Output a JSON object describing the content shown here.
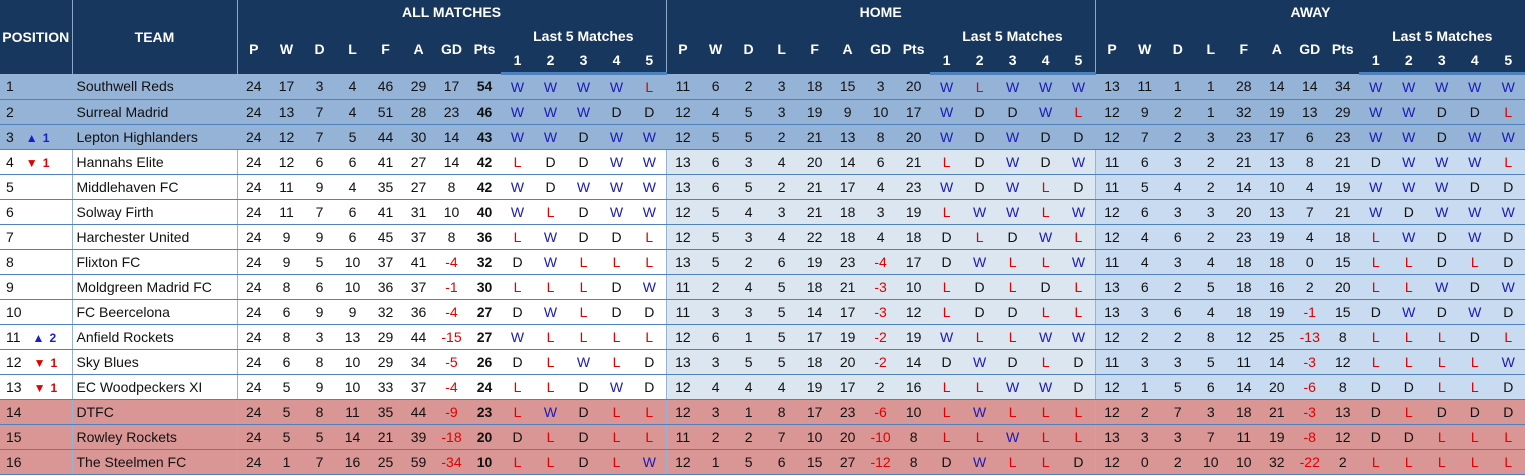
{
  "header": {
    "position": "POSITION",
    "team": "TEAM",
    "sections": [
      "ALL MATCHES",
      "HOME",
      "AWAY"
    ],
    "last5_label": "Last 5 Matches",
    "stat_columns": [
      "P",
      "W",
      "D",
      "L",
      "F",
      "A",
      "GD",
      "Pts"
    ],
    "last5_columns": [
      "1",
      "2",
      "3",
      "4",
      "5"
    ]
  },
  "colors": {
    "header_bg": "#17375e",
    "top_zone": "#95b3d7",
    "bottom_zone": "#da9694",
    "win": "#1a1ab8",
    "loss": "#e00000",
    "up_arrow": "#1a1ad0",
    "down_arrow": "#e00000"
  },
  "rows": [
    {
      "pos": "1",
      "move": null,
      "team": "Southwell Reds",
      "zone": "top",
      "all": [
        "24",
        "17",
        "3",
        "4",
        "46",
        "29",
        "17",
        "54"
      ],
      "all_form": [
        "W",
        "W",
        "W",
        "W",
        "L"
      ],
      "home": [
        "11",
        "6",
        "2",
        "3",
        "18",
        "15",
        "3",
        "20"
      ],
      "home_form": [
        "W",
        "L",
        "W",
        "W",
        "W"
      ],
      "away": [
        "13",
        "11",
        "1",
        "1",
        "28",
        "14",
        "14",
        "34"
      ],
      "away_form": [
        "W",
        "W",
        "W",
        "W",
        "W"
      ]
    },
    {
      "pos": "2",
      "move": null,
      "team": "Surreal Madrid",
      "zone": "top",
      "all": [
        "24",
        "13",
        "7",
        "4",
        "51",
        "28",
        "23",
        "46"
      ],
      "all_form": [
        "W",
        "W",
        "W",
        "D",
        "D"
      ],
      "home": [
        "12",
        "4",
        "5",
        "3",
        "19",
        "9",
        "10",
        "17"
      ],
      "home_form": [
        "W",
        "D",
        "D",
        "W",
        "L"
      ],
      "away": [
        "12",
        "9",
        "2",
        "1",
        "32",
        "19",
        "13",
        "29"
      ],
      "away_form": [
        "W",
        "W",
        "D",
        "D",
        "L"
      ]
    },
    {
      "pos": "3",
      "move": {
        "dir": "up",
        "n": "1"
      },
      "team": "Lepton Highlanders",
      "zone": "top",
      "all": [
        "24",
        "12",
        "7",
        "5",
        "44",
        "30",
        "14",
        "43"
      ],
      "all_form": [
        "W",
        "W",
        "D",
        "W",
        "W"
      ],
      "home": [
        "12",
        "5",
        "5",
        "2",
        "21",
        "13",
        "8",
        "20"
      ],
      "home_form": [
        "W",
        "D",
        "W",
        "D",
        "D"
      ],
      "away": [
        "12",
        "7",
        "2",
        "3",
        "23",
        "17",
        "6",
        "23"
      ],
      "away_form": [
        "W",
        "W",
        "D",
        "W",
        "W"
      ]
    },
    {
      "pos": "4",
      "move": {
        "dir": "down",
        "n": "1"
      },
      "team": "Hannahs Elite",
      "zone": "mid",
      "all": [
        "24",
        "12",
        "6",
        "6",
        "41",
        "27",
        "14",
        "42"
      ],
      "all_form": [
        "L",
        "D",
        "D",
        "W",
        "W"
      ],
      "home": [
        "13",
        "6",
        "3",
        "4",
        "20",
        "14",
        "6",
        "21"
      ],
      "home_form": [
        "L",
        "D",
        "W",
        "D",
        "W"
      ],
      "away": [
        "11",
        "6",
        "3",
        "2",
        "21",
        "13",
        "8",
        "21"
      ],
      "away_form": [
        "D",
        "W",
        "W",
        "W",
        "L"
      ]
    },
    {
      "pos": "5",
      "move": null,
      "team": "Middlehaven FC",
      "zone": "mid",
      "all": [
        "24",
        "11",
        "9",
        "4",
        "35",
        "27",
        "8",
        "42"
      ],
      "all_form": [
        "W",
        "D",
        "W",
        "W",
        "W"
      ],
      "home": [
        "13",
        "6",
        "5",
        "2",
        "21",
        "17",
        "4",
        "23"
      ],
      "home_form": [
        "W",
        "D",
        "W",
        "L",
        "D"
      ],
      "away": [
        "11",
        "5",
        "4",
        "2",
        "14",
        "10",
        "4",
        "19"
      ],
      "away_form": [
        "W",
        "W",
        "W",
        "D",
        "D"
      ]
    },
    {
      "pos": "6",
      "move": null,
      "team": "Solway Firth",
      "zone": "mid",
      "all": [
        "24",
        "11",
        "7",
        "6",
        "41",
        "31",
        "10",
        "40"
      ],
      "all_form": [
        "W",
        "L",
        "D",
        "W",
        "W"
      ],
      "home": [
        "12",
        "5",
        "4",
        "3",
        "21",
        "18",
        "3",
        "19"
      ],
      "home_form": [
        "L",
        "W",
        "W",
        "L",
        "W"
      ],
      "away": [
        "12",
        "6",
        "3",
        "3",
        "20",
        "13",
        "7",
        "21"
      ],
      "away_form": [
        "W",
        "D",
        "W",
        "W",
        "W"
      ]
    },
    {
      "pos": "7",
      "move": null,
      "team": "Harchester United",
      "zone": "mid",
      "all": [
        "24",
        "9",
        "9",
        "6",
        "45",
        "37",
        "8",
        "36"
      ],
      "all_form": [
        "L",
        "W",
        "D",
        "D",
        "L"
      ],
      "home": [
        "12",
        "5",
        "3",
        "4",
        "22",
        "18",
        "4",
        "18"
      ],
      "home_form": [
        "D",
        "L",
        "D",
        "W",
        "L"
      ],
      "away": [
        "12",
        "4",
        "6",
        "2",
        "23",
        "19",
        "4",
        "18"
      ],
      "away_form": [
        "L",
        "W",
        "D",
        "W",
        "D"
      ]
    },
    {
      "pos": "8",
      "move": null,
      "team": "Flixton FC",
      "zone": "mid",
      "all": [
        "24",
        "9",
        "5",
        "10",
        "37",
        "41",
        "-4",
        "32"
      ],
      "all_form": [
        "D",
        "W",
        "L",
        "L",
        "L"
      ],
      "home": [
        "13",
        "5",
        "2",
        "6",
        "19",
        "23",
        "-4",
        "17"
      ],
      "home_form": [
        "D",
        "W",
        "L",
        "L",
        "W"
      ],
      "away": [
        "11",
        "4",
        "3",
        "4",
        "18",
        "18",
        "0",
        "15"
      ],
      "away_form": [
        "L",
        "L",
        "D",
        "L",
        "D"
      ]
    },
    {
      "pos": "9",
      "move": null,
      "team": "Moldgreen Madrid FC",
      "zone": "mid",
      "all": [
        "24",
        "8",
        "6",
        "10",
        "36",
        "37",
        "-1",
        "30"
      ],
      "all_form": [
        "L",
        "L",
        "L",
        "D",
        "W"
      ],
      "home": [
        "11",
        "2",
        "4",
        "5",
        "18",
        "21",
        "-3",
        "10"
      ],
      "home_form": [
        "L",
        "D",
        "L",
        "D",
        "L"
      ],
      "away": [
        "13",
        "6",
        "2",
        "5",
        "18",
        "16",
        "2",
        "20"
      ],
      "away_form": [
        "L",
        "L",
        "W",
        "D",
        "W"
      ]
    },
    {
      "pos": "10",
      "move": null,
      "team": "FC Beercelona",
      "zone": "mid",
      "all": [
        "24",
        "6",
        "9",
        "9",
        "32",
        "36",
        "-4",
        "27"
      ],
      "all_form": [
        "D",
        "W",
        "L",
        "D",
        "D"
      ],
      "home": [
        "11",
        "3",
        "3",
        "5",
        "14",
        "17",
        "-3",
        "12"
      ],
      "home_form": [
        "L",
        "D",
        "D",
        "L",
        "L"
      ],
      "away": [
        "13",
        "3",
        "6",
        "4",
        "18",
        "19",
        "-1",
        "15"
      ],
      "away_form": [
        "D",
        "W",
        "D",
        "W",
        "D"
      ]
    },
    {
      "pos": "11",
      "move": {
        "dir": "up",
        "n": "2"
      },
      "team": "Anfield Rockets",
      "zone": "mid",
      "all": [
        "24",
        "8",
        "3",
        "13",
        "29",
        "44",
        "-15",
        "27"
      ],
      "all_form": [
        "W",
        "L",
        "L",
        "L",
        "L"
      ],
      "home": [
        "12",
        "6",
        "1",
        "5",
        "17",
        "19",
        "-2",
        "19"
      ],
      "home_form": [
        "W",
        "L",
        "L",
        "W",
        "W"
      ],
      "away": [
        "12",
        "2",
        "2",
        "8",
        "12",
        "25",
        "-13",
        "8"
      ],
      "away_form": [
        "L",
        "L",
        "L",
        "D",
        "L"
      ]
    },
    {
      "pos": "12",
      "move": {
        "dir": "down",
        "n": "1"
      },
      "team": "Sky Blues",
      "zone": "mid",
      "all": [
        "24",
        "6",
        "8",
        "10",
        "29",
        "34",
        "-5",
        "26"
      ],
      "all_form": [
        "D",
        "L",
        "W",
        "L",
        "D"
      ],
      "home": [
        "13",
        "3",
        "5",
        "5",
        "18",
        "20",
        "-2",
        "14"
      ],
      "home_form": [
        "D",
        "W",
        "D",
        "L",
        "D"
      ],
      "away": [
        "11",
        "3",
        "3",
        "5",
        "11",
        "14",
        "-3",
        "12"
      ],
      "away_form": [
        "L",
        "L",
        "L",
        "L",
        "W"
      ]
    },
    {
      "pos": "13",
      "move": {
        "dir": "down",
        "n": "1"
      },
      "team": "EC Woodpeckers XI",
      "zone": "mid",
      "all": [
        "24",
        "5",
        "9",
        "10",
        "33",
        "37",
        "-4",
        "24"
      ],
      "all_form": [
        "L",
        "L",
        "D",
        "W",
        "D"
      ],
      "home": [
        "12",
        "4",
        "4",
        "4",
        "19",
        "17",
        "2",
        "16"
      ],
      "home_form": [
        "L",
        "L",
        "W",
        "W",
        "D"
      ],
      "away": [
        "12",
        "1",
        "5",
        "6",
        "14",
        "20",
        "-6",
        "8"
      ],
      "away_form": [
        "D",
        "D",
        "L",
        "L",
        "D"
      ]
    },
    {
      "pos": "14",
      "move": null,
      "team": "DTFC",
      "zone": "bottom",
      "all": [
        "24",
        "5",
        "8",
        "11",
        "35",
        "44",
        "-9",
        "23"
      ],
      "all_form": [
        "L",
        "W",
        "D",
        "L",
        "L"
      ],
      "home": [
        "12",
        "3",
        "1",
        "8",
        "17",
        "23",
        "-6",
        "10"
      ],
      "home_form": [
        "L",
        "W",
        "L",
        "L",
        "L"
      ],
      "away": [
        "12",
        "2",
        "7",
        "3",
        "18",
        "21",
        "-3",
        "13"
      ],
      "away_form": [
        "D",
        "L",
        "D",
        "D",
        "D"
      ]
    },
    {
      "pos": "15",
      "move": null,
      "team": "Rowley Rockets",
      "zone": "bottom",
      "all": [
        "24",
        "5",
        "5",
        "14",
        "21",
        "39",
        "-18",
        "20"
      ],
      "all_form": [
        "D",
        "L",
        "D",
        "L",
        "L"
      ],
      "home": [
        "11",
        "2",
        "2",
        "7",
        "10",
        "20",
        "-10",
        "8"
      ],
      "home_form": [
        "L",
        "L",
        "W",
        "L",
        "L"
      ],
      "away": [
        "13",
        "3",
        "3",
        "7",
        "11",
        "19",
        "-8",
        "12"
      ],
      "away_form": [
        "D",
        "D",
        "L",
        "L",
        "L"
      ]
    },
    {
      "pos": "16",
      "move": null,
      "team": "The Steelmen FC",
      "zone": "bottom",
      "all": [
        "24",
        "1",
        "7",
        "16",
        "25",
        "59",
        "-34",
        "10"
      ],
      "all_form": [
        "L",
        "L",
        "D",
        "L",
        "W"
      ],
      "home": [
        "12",
        "1",
        "5",
        "6",
        "15",
        "27",
        "-12",
        "8"
      ],
      "home_form": [
        "D",
        "W",
        "L",
        "L",
        "D"
      ],
      "away": [
        "12",
        "0",
        "2",
        "10",
        "10",
        "32",
        "-22",
        "2"
      ],
      "away_form": [
        "L",
        "L",
        "L",
        "L",
        "L"
      ]
    }
  ]
}
